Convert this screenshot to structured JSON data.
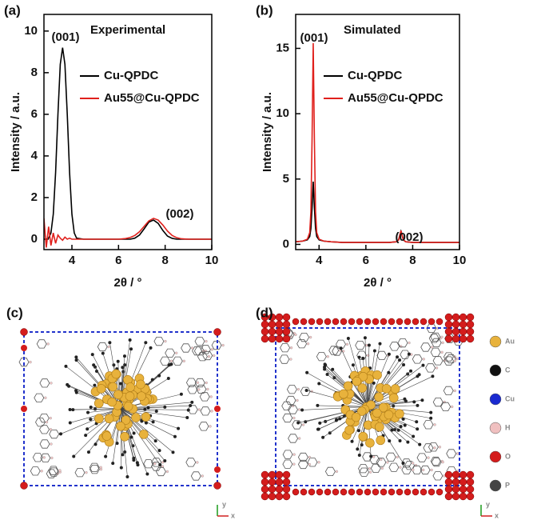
{
  "chart_data": [
    {
      "type": "line",
      "panel": "(a)",
      "title": "Experimental",
      "x_label": "2θ / °",
      "y_label": "Intensity / a.u.",
      "annotations": [
        "(001)",
        "(002)"
      ],
      "x": [
        2.8,
        2.9,
        3.0,
        3.1,
        3.2,
        3.3,
        3.4,
        3.5,
        3.6,
        3.7,
        3.8,
        3.9,
        4.0,
        4.1,
        4.2,
        4.5,
        5,
        5.5,
        6,
        6.3,
        6.5,
        6.7,
        6.9,
        7.1,
        7.3,
        7.5,
        7.7,
        7.9,
        8.1,
        8.3,
        8.5,
        8.7,
        9,
        9.5,
        10
      ],
      "series": [
        {
          "name": "Cu-QPDC",
          "color": "#000000",
          "values": [
            0,
            0,
            0.05,
            0.3,
            1.2,
            3.2,
            6.0,
            8.4,
            9.2,
            8.4,
            6.0,
            3.2,
            1.2,
            0.3,
            0.05,
            0,
            0,
            0,
            0,
            0,
            0,
            0.05,
            0.2,
            0.5,
            0.82,
            0.92,
            0.76,
            0.42,
            0.15,
            0.04,
            0,
            0,
            0,
            0,
            0
          ]
        },
        {
          "name": "Au55@Cu-QPDC",
          "color": "#e0201c",
          "values": [
            1.0,
            -0.4,
            0.6,
            -0.3,
            0.3,
            -0.2,
            0.2,
            0.05,
            -0.05,
            0.1,
            0,
            0.05,
            0,
            0,
            0,
            0,
            0,
            0,
            0,
            0.03,
            0.08,
            0.18,
            0.36,
            0.62,
            0.88,
            1.0,
            0.92,
            0.68,
            0.39,
            0.18,
            0.07,
            0.02,
            0,
            0,
            0
          ]
        }
      ],
      "xlim": [
        2.8,
        10
      ],
      "xticks": [
        4,
        6,
        8,
        10
      ],
      "ylim": [
        -0.5,
        10.8
      ],
      "yticks": [
        0,
        2,
        4,
        6,
        8,
        10
      ]
    },
    {
      "type": "line",
      "panel": "(b)",
      "title": "Simulated",
      "x_label": "2θ / °",
      "y_label": "Intensity / a.u.",
      "annotations": [
        "(001)",
        "(002)"
      ],
      "x": [
        3,
        3.3,
        3.5,
        3.6,
        3.65,
        3.7,
        3.75,
        3.8,
        3.85,
        3.9,
        4.0,
        4.2,
        4.5,
        5,
        6,
        7,
        7.3,
        7.4,
        7.45,
        7.5,
        7.55,
        7.6,
        7.7,
        8,
        9,
        10
      ],
      "series": [
        {
          "name": "Cu-QPDC",
          "color": "#000000",
          "values": [
            0.2,
            0.25,
            0.35,
            0.6,
            1.2,
            2.8,
            4.8,
            2.8,
            1.2,
            0.6,
            0.35,
            0.25,
            0.2,
            0.15,
            0.15,
            0.15,
            0.2,
            0.35,
            0.7,
            1.0,
            0.7,
            0.35,
            0.2,
            0.15,
            0.15,
            0.15
          ]
        },
        {
          "name": "Au55@Cu-QPDC",
          "color": "#e0201c",
          "values": [
            0.2,
            0.25,
            0.4,
            0.9,
            2.5,
            8,
            15.4,
            8,
            2.5,
            0.9,
            0.4,
            0.25,
            0.2,
            0.15,
            0.15,
            0.15,
            0.2,
            0.35,
            0.7,
            1.05,
            0.7,
            0.35,
            0.2,
            0.15,
            0.15,
            0.15
          ]
        }
      ],
      "xlim": [
        3,
        10
      ],
      "xticks": [
        4,
        6,
        8,
        10
      ],
      "ylim": [
        -0.4,
        17.6
      ],
      "yticks": [
        0,
        5,
        10,
        15
      ]
    }
  ],
  "structures": [
    {
      "panel": "(c)",
      "axes": [
        "y",
        "x"
      ]
    },
    {
      "panel": "(d)",
      "axes": [
        "y",
        "x"
      ],
      "legend": [
        "Au",
        "C",
        "Cu",
        "H",
        "O",
        "P"
      ]
    }
  ]
}
